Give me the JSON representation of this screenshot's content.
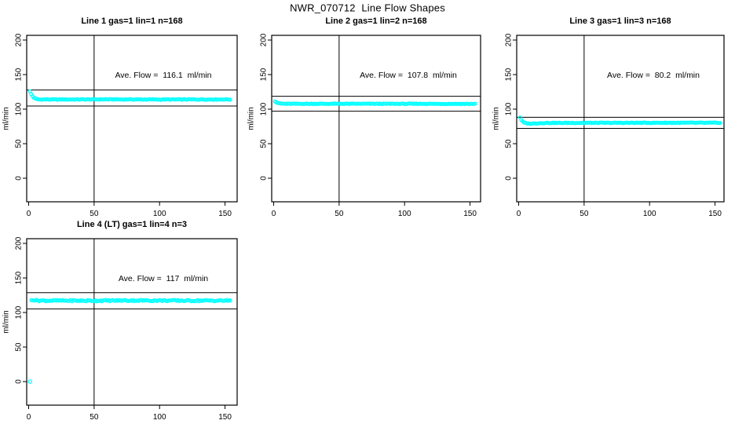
{
  "figure": {
    "title": "NWR_070712  Line Flow Shapes"
  },
  "chart_data": [
    {
      "type": "scatter",
      "title": "Line 1 gas=1 lin=1 n=168",
      "annotation": "Ave. Flow =  116.1  ml/min",
      "ave_flow_ml_min": 116.1,
      "n": 168,
      "ylabel": "ml/min",
      "xticks": [
        0,
        50,
        100,
        150
      ],
      "yticks": [
        0,
        50,
        100,
        150,
        200
      ],
      "xlim": [
        0,
        160
      ],
      "ylim": [
        0,
        207
      ],
      "grid": false,
      "vline_x": 50,
      "hlines": [
        104.5,
        127.7
      ],
      "marker_color": "#00ffff",
      "points_profile": [
        [
          1,
          125.5
        ],
        [
          2,
          121.5
        ],
        [
          3,
          118.5
        ],
        [
          4,
          116.5
        ],
        [
          5,
          115.2
        ],
        [
          6,
          114.5
        ],
        [
          8,
          114.0
        ],
        [
          20,
          113.9
        ],
        [
          60,
          114.1
        ],
        [
          100,
          113.9
        ],
        [
          154,
          114.0
        ]
      ],
      "x_start": 1,
      "x_end": 154,
      "x_step": 1,
      "jitter": 0.5,
      "extra_points": []
    },
    {
      "type": "scatter",
      "title": "Line 2 gas=1 lin=2 n=168",
      "annotation": "Ave. Flow =  107.8  ml/min",
      "ave_flow_ml_min": 107.8,
      "n": 168,
      "ylabel": "ml/min",
      "xticks": [
        0,
        50,
        100,
        150
      ],
      "yticks": [
        0,
        50,
        100,
        150,
        200
      ],
      "xlim": [
        0,
        160
      ],
      "ylim": [
        0,
        207
      ],
      "grid": false,
      "vline_x": 50,
      "hlines": [
        97.0,
        118.6
      ],
      "marker_color": "#00ffff",
      "points_profile": [
        [
          1,
          111.5
        ],
        [
          2,
          110.0
        ],
        [
          3,
          109.0
        ],
        [
          4,
          108.4
        ],
        [
          6,
          107.9
        ],
        [
          10,
          107.7
        ],
        [
          80,
          107.7
        ],
        [
          154,
          107.6
        ]
      ],
      "x_start": 1,
      "x_end": 154,
      "x_step": 1,
      "jitter": 0.45,
      "extra_points": []
    },
    {
      "type": "scatter",
      "title": "Line 3 gas=1 lin=3 n=168",
      "annotation": "Ave. Flow =  80.2  ml/min",
      "ave_flow_ml_min": 80.2,
      "n": 168,
      "ylabel": "ml/min",
      "xticks": [
        0,
        50,
        100,
        150
      ],
      "yticks": [
        0,
        50,
        100,
        150,
        200
      ],
      "xlim": [
        0,
        160
      ],
      "ylim": [
        0,
        207
      ],
      "grid": false,
      "vline_x": 50,
      "hlines": [
        72.2,
        88.2
      ],
      "marker_color": "#00ffff",
      "points_profile": [
        [
          1,
          88.0
        ],
        [
          2,
          84.5
        ],
        [
          3,
          82.0
        ],
        [
          4,
          80.5
        ],
        [
          6,
          79.3
        ],
        [
          9,
          79.0
        ],
        [
          14,
          79.5
        ],
        [
          20,
          80.0
        ],
        [
          90,
          80.2
        ],
        [
          154,
          80.2
        ]
      ],
      "x_start": 1,
      "x_end": 154,
      "x_step": 1,
      "jitter": 0.5,
      "extra_points": []
    },
    {
      "type": "scatter",
      "title": "Line 4 (LT) gas=1 lin=4 n=3",
      "annotation": "Ave. Flow =  117  ml/min",
      "ave_flow_ml_min": 117,
      "n": 3,
      "ylabel": "ml/min",
      "xticks": [
        0,
        50,
        100,
        150
      ],
      "yticks": [
        0,
        50,
        100,
        150,
        200
      ],
      "xlim": [
        0,
        160
      ],
      "ylim": [
        0,
        207
      ],
      "grid": false,
      "vline_x": 50,
      "hlines": [
        105.3,
        128.7
      ],
      "marker_color": "#00ffff",
      "points_profile": [
        [
          2,
          117.5
        ],
        [
          3,
          118.5
        ],
        [
          6,
          117.3
        ],
        [
          40,
          117.0
        ],
        [
          80,
          117.4
        ],
        [
          120,
          117.1
        ],
        [
          154,
          117.2
        ]
      ],
      "x_start": 2,
      "x_end": 154,
      "x_step": 1,
      "jitter": 1.0,
      "extra_points": [
        [
          1,
          0
        ]
      ]
    }
  ]
}
